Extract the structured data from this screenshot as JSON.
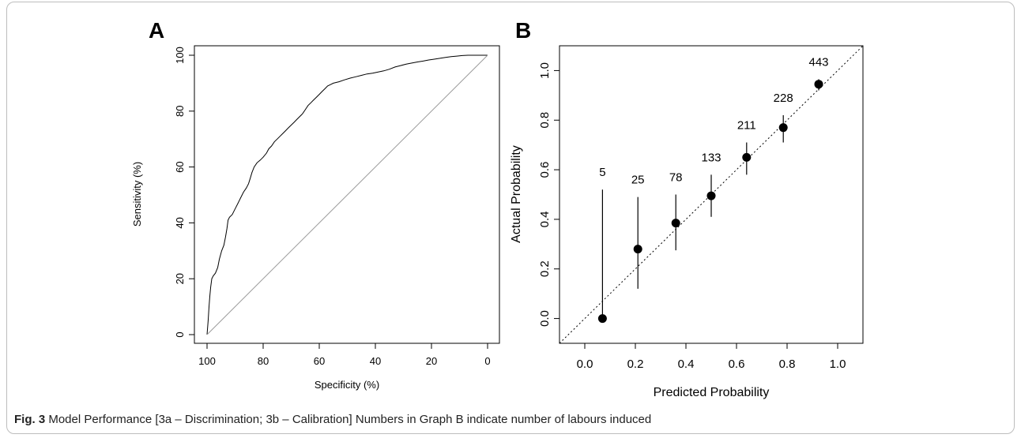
{
  "figure": {
    "caption_label": "Fig. 3",
    "caption_text": "Model Performance [3a – Discrimination; 3b – Calibration] Numbers in Graph B indicate number of labours induced"
  },
  "chart_data": [
    {
      "panel_label": "A",
      "type": "line",
      "xlabel": "Specificity (%)",
      "ylabel": "Sensitivity (%)",
      "xlim": [
        100,
        0
      ],
      "ylim": [
        0,
        100
      ],
      "x_reversed": true,
      "x_ticks": [
        100,
        80,
        60,
        40,
        20,
        0
      ],
      "y_ticks": [
        0,
        20,
        40,
        60,
        80,
        100
      ],
      "grid": false,
      "series": [
        {
          "kind": "roc_curve",
          "points": [
            [
              100,
              0
            ],
            [
              99.6,
              5
            ],
            [
              99.3,
              10
            ],
            [
              99,
              14
            ],
            [
              98.7,
              17
            ],
            [
              98.3,
              20
            ],
            [
              97.8,
              21
            ],
            [
              97,
              22
            ],
            [
              96.2,
              24
            ],
            [
              95.6,
              27
            ],
            [
              94.8,
              30
            ],
            [
              94,
              32
            ],
            [
              93.4,
              35
            ],
            [
              92.9,
              38
            ],
            [
              92.5,
              41
            ],
            [
              92,
              42
            ],
            [
              91,
              43
            ],
            [
              90,
              45
            ],
            [
              89,
              47
            ],
            [
              88,
              49
            ],
            [
              87,
              51
            ],
            [
              86,
              52.5
            ],
            [
              85.2,
              54
            ],
            [
              84.6,
              56
            ],
            [
              84,
              58
            ],
            [
              83.2,
              60
            ],
            [
              82.2,
              61.5
            ],
            [
              81,
              62.5
            ],
            [
              80,
              63.5
            ],
            [
              78.8,
              65
            ],
            [
              78,
              66.5
            ],
            [
              77,
              67.5
            ],
            [
              76,
              69
            ],
            [
              75,
              70
            ],
            [
              74,
              71
            ],
            [
              73,
              72
            ],
            [
              72,
              73
            ],
            [
              71,
              74
            ],
            [
              70,
              75
            ],
            [
              69,
              76
            ],
            [
              68,
              77
            ],
            [
              67,
              78
            ],
            [
              66,
              79
            ],
            [
              65,
              80.5
            ],
            [
              64,
              82
            ],
            [
              63,
              83
            ],
            [
              62,
              84
            ],
            [
              61,
              85
            ],
            [
              60,
              86
            ],
            [
              59,
              87
            ],
            [
              58,
              88
            ],
            [
              57,
              89
            ],
            [
              56,
              89.5
            ],
            [
              55,
              90
            ],
            [
              53,
              90.5
            ],
            [
              51,
              91.2
            ],
            [
              49,
              91.8
            ],
            [
              47,
              92.3
            ],
            [
              45,
              92.8
            ],
            [
              43,
              93.3
            ],
            [
              41,
              93.6
            ],
            [
              39,
              94
            ],
            [
              37,
              94.4
            ],
            [
              35,
              95
            ],
            [
              33,
              95.8
            ],
            [
              31,
              96.3
            ],
            [
              29,
              96.8
            ],
            [
              27,
              97.2
            ],
            [
              25,
              97.6
            ],
            [
              23,
              97.9
            ],
            [
              21,
              98.3
            ],
            [
              19,
              98.6
            ],
            [
              17,
              98.9
            ],
            [
              15,
              99.2
            ],
            [
              13,
              99.5
            ],
            [
              11,
              99.7
            ],
            [
              9,
              99.9
            ],
            [
              7,
              100
            ],
            [
              5,
              100
            ],
            [
              0,
              100
            ]
          ]
        },
        {
          "kind": "reference_diagonal",
          "points": [
            [
              100,
              0
            ],
            [
              0,
              100
            ]
          ]
        }
      ]
    },
    {
      "panel_label": "B",
      "type": "scatter",
      "xlabel": "Predicted Probability",
      "ylabel": "Actual Probability",
      "xlim": [
        -0.1,
        1.1
      ],
      "ylim": [
        -0.1,
        1.1
      ],
      "x_ticks": [
        0.0,
        0.2,
        0.4,
        0.6,
        0.8,
        1.0
      ],
      "y_ticks": [
        0.0,
        0.2,
        0.4,
        0.6,
        0.8,
        1.0
      ],
      "x_tick_labels": [
        "0.0",
        "0.2",
        "0.4",
        "0.6",
        "0.8",
        "1.0"
      ],
      "y_tick_labels": [
        "0.0",
        "0.2",
        "0.4",
        "0.6",
        "0.8",
        "1.0"
      ],
      "grid": false,
      "reference_line": "dotted y = x",
      "points": [
        {
          "x": 0.07,
          "y": 0.0,
          "ci": [
            0.0,
            0.52
          ],
          "n": "5"
        },
        {
          "x": 0.21,
          "y": 0.28,
          "ci": [
            0.12,
            0.49
          ],
          "n": "25"
        },
        {
          "x": 0.36,
          "y": 0.385,
          "ci": [
            0.275,
            0.5
          ],
          "n": "78"
        },
        {
          "x": 0.5,
          "y": 0.495,
          "ci": [
            0.41,
            0.58
          ],
          "n": "133"
        },
        {
          "x": 0.64,
          "y": 0.65,
          "ci": [
            0.58,
            0.71
          ],
          "n": "211"
        },
        {
          "x": 0.785,
          "y": 0.77,
          "ci": [
            0.71,
            0.82
          ],
          "n": "228"
        },
        {
          "x": 0.925,
          "y": 0.945,
          "ci": [
            0.92,
            0.965
          ],
          "n": "443"
        }
      ]
    }
  ]
}
